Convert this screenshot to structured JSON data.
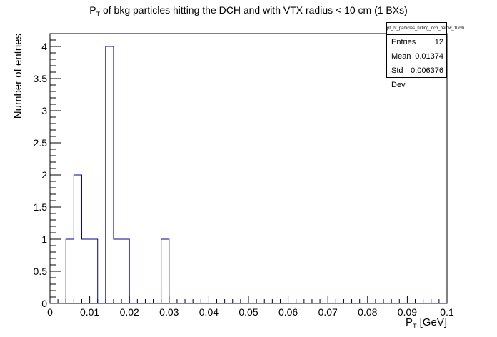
{
  "chart_data": {
    "type": "bar",
    "title_main": "P",
    "title_sub": "T",
    "title_rest": " of bkg particles hitting the DCH and with VTX radius < 10 cm (1 BXs)",
    "xlabel_main": "P",
    "xlabel_sub": "T",
    "xlabel_rest": " [GeV]",
    "ylabel": "Number of entries",
    "xlim": [
      0,
      0.1
    ],
    "ylim": [
      0,
      4.2
    ],
    "x_ticks": [
      "0",
      "0.01",
      "0.02",
      "0.03",
      "0.04",
      "0.05",
      "0.06",
      "0.07",
      "0.08",
      "0.09",
      "0.1"
    ],
    "y_ticks": [
      "0",
      "0.5",
      "1",
      "1.5",
      "2",
      "2.5",
      "3",
      "3.5",
      "4"
    ],
    "bin_edges_start": 0,
    "bin_width": 0.002,
    "values": [
      0,
      0,
      1,
      2,
      1,
      1,
      0,
      4,
      1,
      1,
      0,
      0,
      0,
      0,
      1,
      0,
      0,
      0,
      0,
      0,
      0,
      0,
      0,
      0,
      0,
      0,
      0,
      0,
      0,
      0,
      0,
      0,
      0,
      0,
      0,
      0,
      0,
      0,
      0,
      0,
      0,
      0,
      0,
      0,
      0,
      0,
      0,
      0,
      0,
      0
    ],
    "line_color": "#000099",
    "grid": false,
    "stats": {
      "name": "pt_of_particles_hitting_dch_below_10cm",
      "rows": [
        {
          "label": "Entries",
          "value": "12"
        },
        {
          "label": "Mean",
          "value": "0.01374"
        },
        {
          "label": "Std Dev",
          "value": "0.006376"
        }
      ]
    }
  }
}
